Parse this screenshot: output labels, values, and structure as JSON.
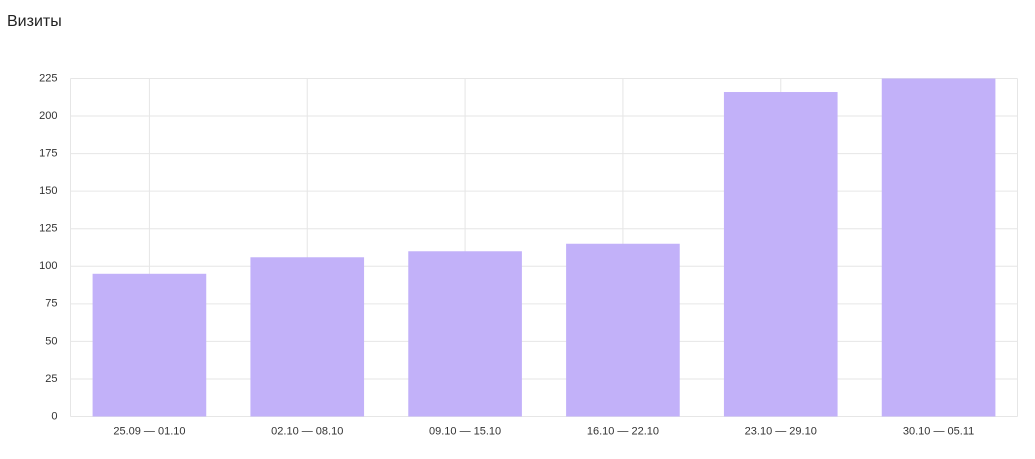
{
  "chart_data": {
    "type": "bar",
    "title": "Визиты",
    "categories": [
      "25.09 — 01.10",
      "02.10 — 08.10",
      "09.10 — 15.10",
      "16.10 — 22.10",
      "23.10 — 29.10",
      "30.10 — 05.11"
    ],
    "values": [
      95,
      106,
      110,
      115,
      216,
      225
    ],
    "color": "#c2b1f9",
    "ylim": [
      0,
      225
    ],
    "yticks": [
      0,
      25,
      50,
      75,
      100,
      125,
      150,
      175,
      200,
      225
    ],
    "grid": true
  }
}
